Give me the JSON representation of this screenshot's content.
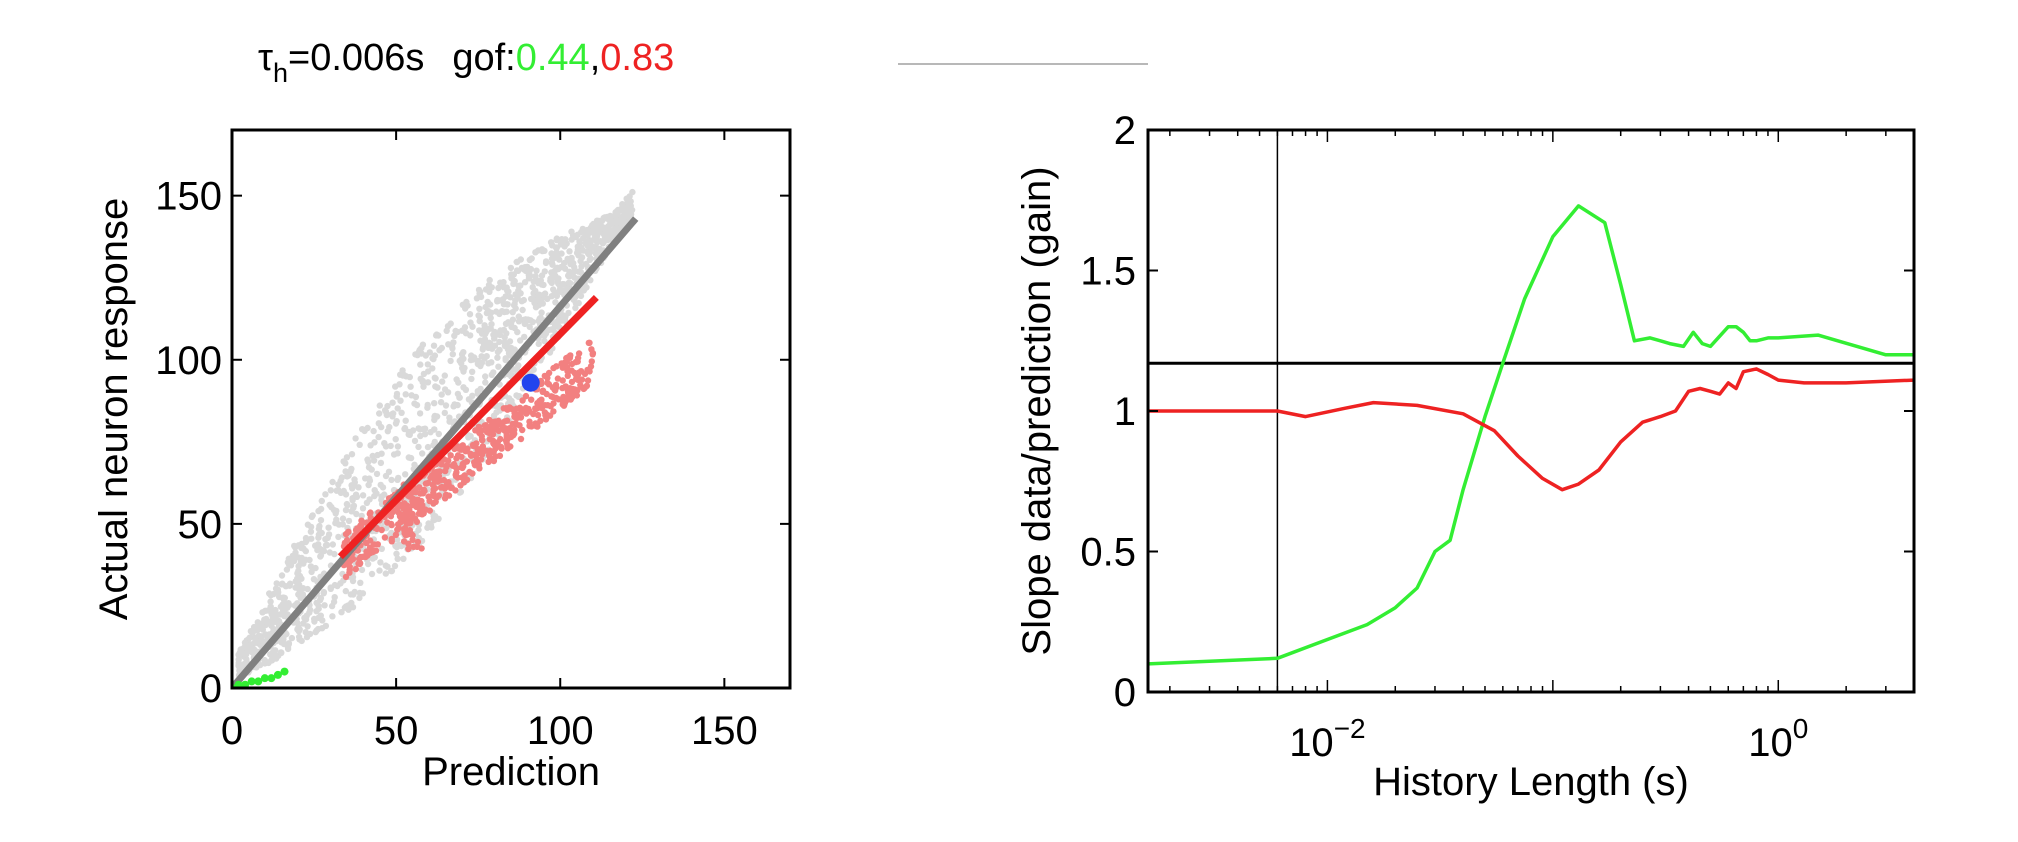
{
  "title": {
    "tau_symbol": "τ",
    "tau_subscript": "h",
    "tau_value": "=0.006s",
    "gof_label": "gof:",
    "gof_green": "0.44",
    "gof_comma": ",",
    "gof_red": "0.83"
  },
  "colors": {
    "green": "#33ee33",
    "red": "#ee2222",
    "pink": "#f28080",
    "lightgray": "#d9d9d9",
    "gray": "#808080",
    "blue": "#2244ee"
  },
  "chart_data": [
    {
      "type": "scatter",
      "xlabel": "Prediction",
      "ylabel": "Actual neuron response",
      "xlim": [
        0,
        170
      ],
      "ylim": [
        0,
        170
      ],
      "xticks": [
        0,
        50,
        100,
        150
      ],
      "yticks": [
        0,
        50,
        100,
        150
      ],
      "series": [
        {
          "color": "gray",
          "description_kind": "reference line",
          "x": [
            0,
            123
          ],
          "y": [
            0,
            143
          ]
        },
        {
          "color": "red",
          "description_kind": "fit line",
          "x": [
            33,
            111
          ],
          "y": [
            40,
            119
          ]
        },
        {
          "color": "blue",
          "description_kind": "marker",
          "x": [
            91
          ],
          "y": [
            93
          ]
        },
        {
          "color": "green",
          "description_kind": "points",
          "x": [
            0,
            2,
            4,
            6,
            8,
            10,
            12,
            14,
            16
          ],
          "y": [
            0,
            1,
            1,
            2,
            2,
            3,
            3,
            4,
            5
          ]
        }
      ]
    },
    {
      "type": "line",
      "xlabel": "History Length (s)",
      "ylabel": "Slope data/prediction (gain)",
      "xscale": "log",
      "xlim": [
        0.0016,
        4
      ],
      "ylim": [
        0,
        2
      ],
      "xtick_labels": [
        {
          "value": 0.01,
          "base": "10",
          "exp": "−2"
        },
        {
          "value": 1,
          "base": "10",
          "exp": "0"
        }
      ],
      "yticks": [
        0,
        0.5,
        1,
        1.5,
        2
      ],
      "ytick_labels": [
        "0",
        "0.5",
        "1",
        "1.5",
        "2"
      ],
      "hline": 1.17,
      "vline": 0.006,
      "series": [
        {
          "color": "green",
          "x": [
            0.0016,
            0.006,
            0.0095,
            0.015,
            0.02,
            0.025,
            0.03,
            0.035,
            0.04,
            0.05,
            0.06,
            0.075,
            0.1,
            0.13,
            0.17,
            0.2,
            0.23,
            0.27,
            0.3,
            0.33,
            0.38,
            0.42,
            0.46,
            0.5,
            0.6,
            0.65,
            0.7,
            0.75,
            0.8,
            0.9,
            0.95,
            1.0,
            1.5,
            3.0,
            4.0
          ],
          "y": [
            0.1,
            0.12,
            0.18,
            0.24,
            0.3,
            0.37,
            0.5,
            0.54,
            0.72,
            0.98,
            1.17,
            1.4,
            1.62,
            1.73,
            1.67,
            1.45,
            1.25,
            1.26,
            1.25,
            1.24,
            1.23,
            1.28,
            1.24,
            1.23,
            1.3,
            1.3,
            1.28,
            1.25,
            1.25,
            1.26,
            1.26,
            1.26,
            1.27,
            1.2,
            1.2
          ]
        },
        {
          "color": "red",
          "x": [
            0.0016,
            0.006,
            0.008,
            0.012,
            0.016,
            0.025,
            0.04,
            0.055,
            0.07,
            0.09,
            0.11,
            0.13,
            0.16,
            0.2,
            0.25,
            0.3,
            0.35,
            0.4,
            0.45,
            0.5,
            0.55,
            0.6,
            0.65,
            0.7,
            0.8,
            0.9,
            1.0,
            1.3,
            2.0,
            4.0
          ],
          "y": [
            1.0,
            1.0,
            0.98,
            1.01,
            1.03,
            1.02,
            0.99,
            0.93,
            0.84,
            0.76,
            0.72,
            0.74,
            0.79,
            0.89,
            0.96,
            0.98,
            1.0,
            1.07,
            1.08,
            1.07,
            1.06,
            1.1,
            1.08,
            1.14,
            1.15,
            1.13,
            1.11,
            1.1,
            1.1,
            1.11
          ]
        }
      ]
    }
  ]
}
